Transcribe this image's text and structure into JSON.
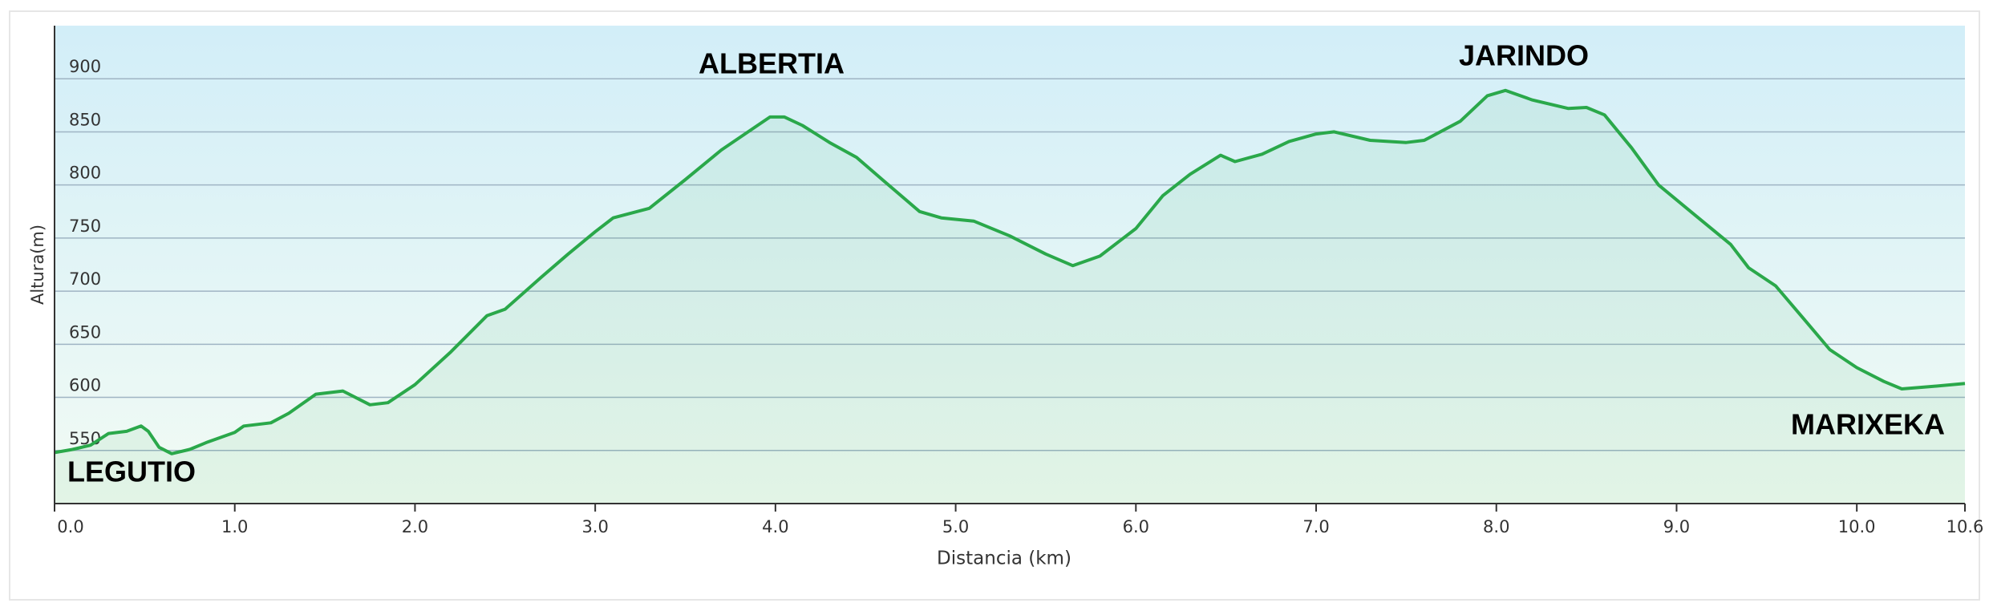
{
  "chart_data": {
    "type": "area-line",
    "x_label": "Distancia  (km)",
    "y_label": "Altura(m)",
    "annotations": [
      "LEGUTIO",
      "ALBERTIA",
      "JARINDO",
      "MARIXEKA"
    ],
    "x": [
      0,
      0.1,
      0.2,
      0.3,
      0.4,
      0.48,
      0.52,
      0.58,
      0.65,
      0.75,
      0.85,
      1.0,
      1.05,
      1.2,
      1.3,
      1.45,
      1.6,
      1.75,
      1.85,
      2.0,
      2.2,
      2.4,
      2.5,
      2.7,
      2.85,
      3.0,
      3.1,
      3.3,
      3.5,
      3.7,
      3.9,
      3.97,
      4.05,
      4.15,
      4.3,
      4.45,
      4.6,
      4.8,
      4.92,
      5.1,
      5.3,
      5.5,
      5.65,
      5.8,
      6.0,
      6.15,
      6.3,
      6.47,
      6.55,
      6.7,
      6.85,
      7.0,
      7.1,
      7.3,
      7.5,
      7.6,
      7.8,
      7.95,
      8.05,
      8.2,
      8.4,
      8.5,
      8.6,
      8.75,
      8.9,
      9.1,
      9.3,
      9.4,
      9.55,
      9.7,
      9.85,
      10.0,
      10.15,
      10.25,
      10.4,
      10.6
    ],
    "values": [
      548,
      551,
      555,
      566,
      568,
      573,
      568,
      553,
      547,
      551,
      558,
      567,
      573,
      576,
      585,
      603,
      606,
      593,
      595,
      612,
      643,
      677,
      683,
      713,
      735,
      756,
      769,
      778,
      805,
      833,
      856,
      864,
      864,
      856,
      840,
      826,
      804,
      775,
      769,
      766,
      752,
      735,
      724,
      733,
      759,
      790,
      810,
      828,
      822,
      829,
      841,
      848,
      850,
      842,
      840,
      842,
      860,
      884,
      889,
      880,
      872,
      873,
      866,
      835,
      800,
      772,
      744,
      722,
      705,
      675,
      645,
      628,
      615,
      608,
      610,
      613
    ],
    "color": "#2aa84a",
    "xlim": [
      0,
      10.6
    ],
    "ylim": [
      500,
      950
    ],
    "xticks": [
      {
        "value": 0,
        "label": "0.0"
      },
      {
        "value": 1,
        "label": "1.0"
      },
      {
        "value": 2,
        "label": "2.0"
      },
      {
        "value": 3,
        "label": "3.0"
      },
      {
        "value": 4,
        "label": "4.0"
      },
      {
        "value": 5,
        "label": "5.0"
      },
      {
        "value": 6,
        "label": "6.0"
      },
      {
        "value": 7,
        "label": "7.0"
      },
      {
        "value": 8,
        "label": "8.0"
      },
      {
        "value": 9,
        "label": "9.0"
      },
      {
        "value": 10,
        "label": "10.0"
      },
      10.6
    ],
    "yticks": [
      550,
      600,
      650,
      700,
      750,
      800,
      850,
      900
    ],
    "grid": true
  }
}
